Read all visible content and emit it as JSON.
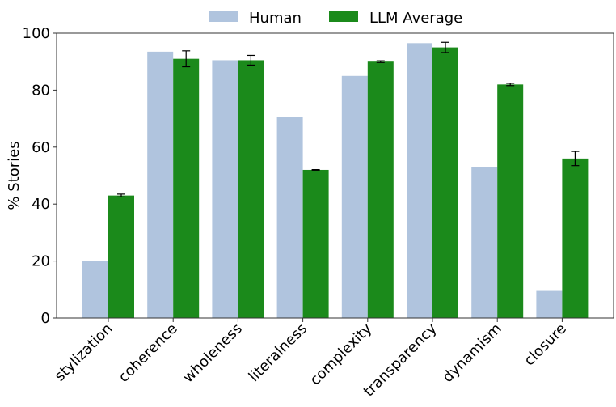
{
  "chart_data": {
    "type": "bar",
    "categories": [
      "stylization",
      "coherence",
      "wholeness",
      "literalness",
      "complexity",
      "transparency",
      "dynamism",
      "closure"
    ],
    "series": [
      {
        "name": "Human",
        "color": "#b0c4de",
        "values": [
          20,
          93.5,
          90.5,
          70.5,
          85,
          96.5,
          53,
          9.5
        ]
      },
      {
        "name": "LLM Average",
        "color": "#1b8a1b",
        "values": [
          43,
          91,
          90.5,
          52,
          90,
          95,
          82,
          56
        ],
        "errors": [
          0.5,
          2.8,
          1.7,
          0.1,
          0.3,
          1.8,
          0.4,
          2.5
        ]
      }
    ],
    "title": "",
    "xlabel": "",
    "ylabel": "% Stories",
    "ylim": [
      0,
      100
    ],
    "yticks": [
      0,
      20,
      40,
      60,
      80,
      100
    ],
    "grid": false,
    "legend": "top-center"
  }
}
